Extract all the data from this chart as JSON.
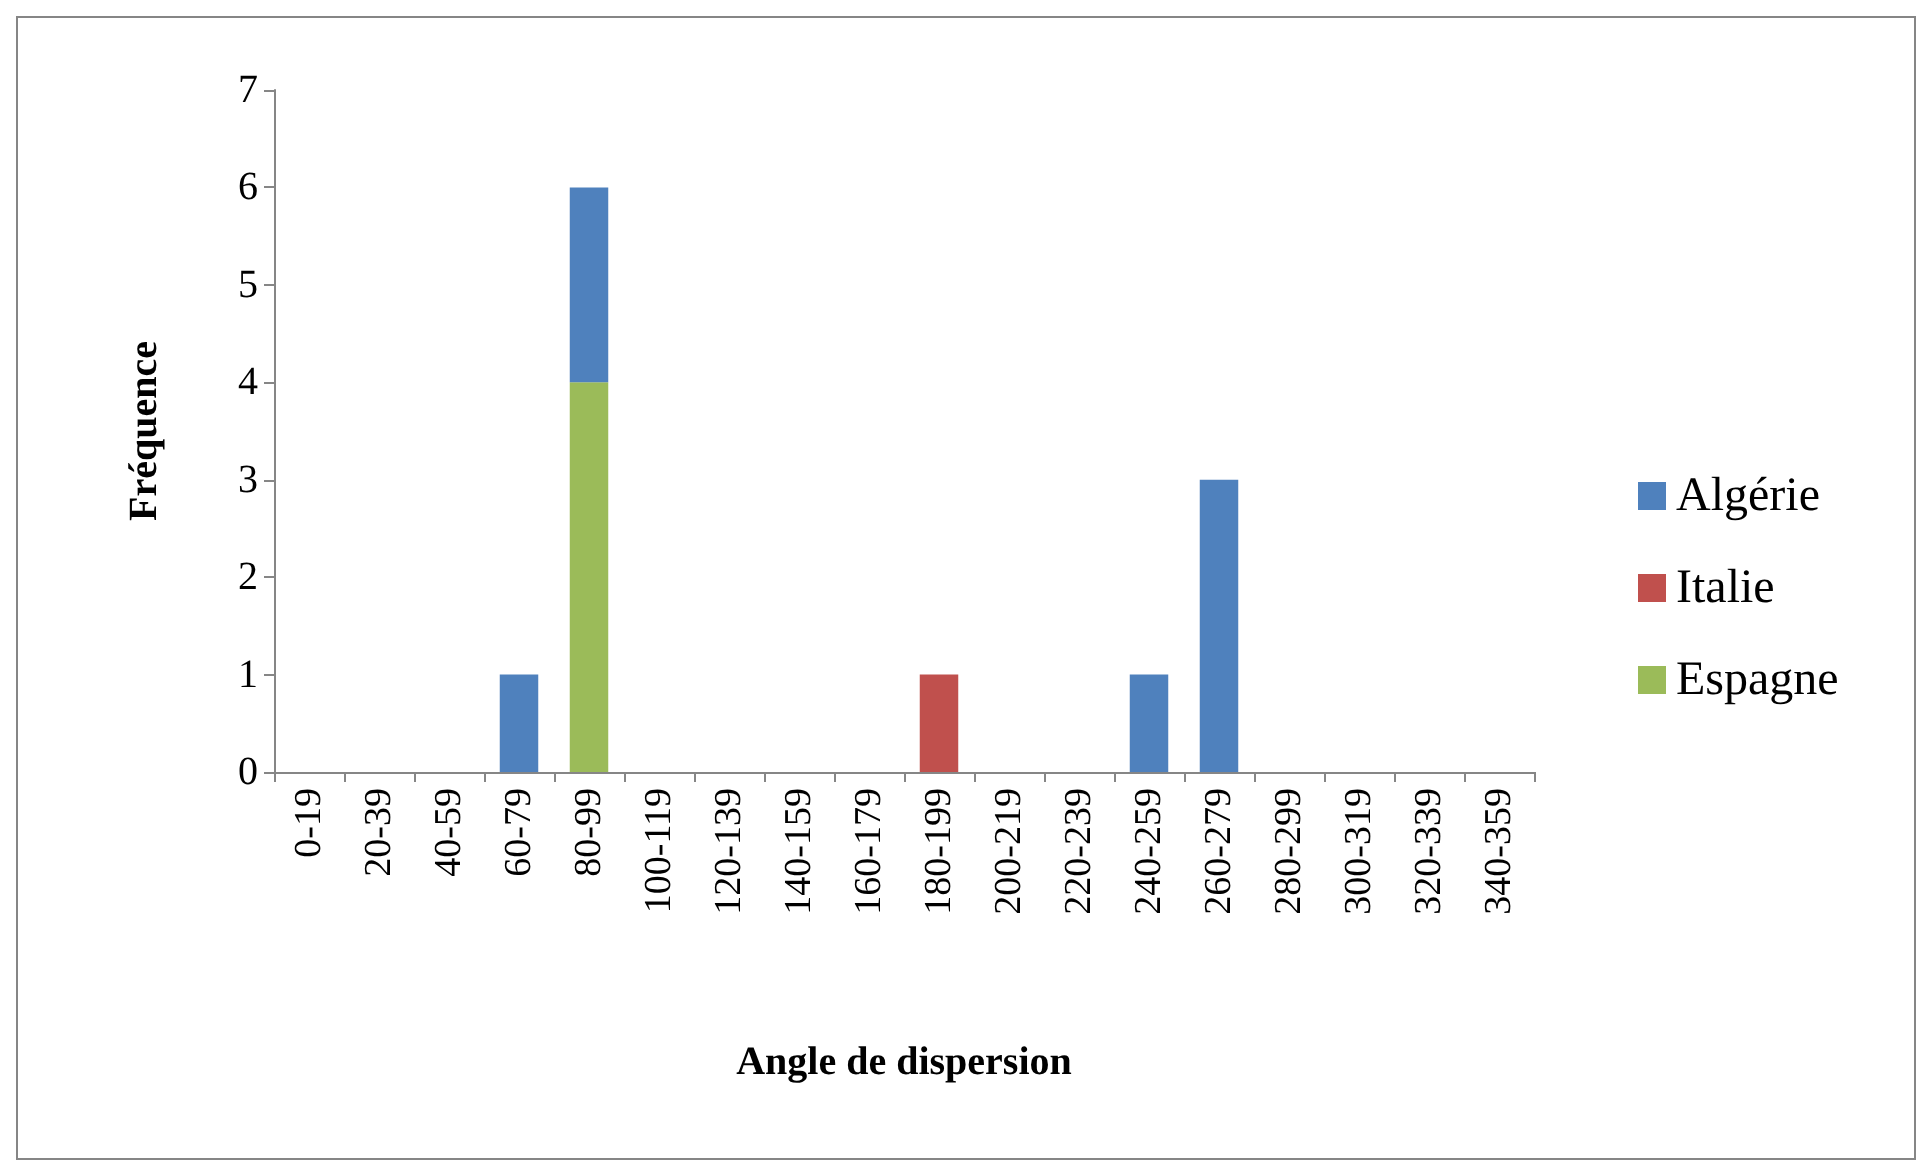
{
  "chart_data": {
    "type": "bar",
    "stacked": true,
    "xlabel": "Angle de dispersion",
    "ylabel": "Fréquence",
    "categories": [
      "0-19",
      "20-39",
      "40-59",
      "60-79",
      "80-99",
      "100-119",
      "120-139",
      "140-159",
      "160-179",
      "180-199",
      "200-219",
      "220-239",
      "240-259",
      "260-279",
      "280-299",
      "300-319",
      "320-339",
      "340-359"
    ],
    "series": [
      {
        "name": "Espagne",
        "color": "#9bbb59",
        "values": [
          0,
          0,
          0,
          0,
          4,
          0,
          0,
          0,
          0,
          0,
          0,
          0,
          0,
          0,
          0,
          0,
          0,
          0
        ]
      },
      {
        "name": "Italie",
        "color": "#c0504d",
        "values": [
          0,
          0,
          0,
          0,
          0,
          0,
          0,
          0,
          0,
          1,
          0,
          0,
          0,
          0,
          0,
          0,
          0,
          0
        ]
      },
      {
        "name": "Algérie",
        "color": "#4f81bd",
        "values": [
          0,
          0,
          0,
          1,
          2,
          0,
          0,
          0,
          0,
          0,
          0,
          0,
          1,
          3,
          0,
          0,
          0,
          0
        ]
      }
    ],
    "ylim": [
      0,
      7
    ],
    "yticks": [
      0,
      1,
      2,
      3,
      4,
      5,
      6,
      7
    ],
    "grid": false,
    "legend": "right"
  }
}
